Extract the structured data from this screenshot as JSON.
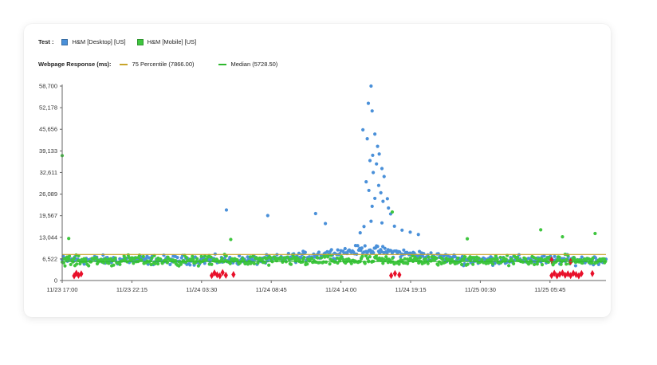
{
  "test_legend": {
    "label": "Test :",
    "items": [
      {
        "name": "H&M [Desktop] [US]",
        "color": "#4a90d9"
      },
      {
        "name": "H&M [Mobile] [US]",
        "color": "#3fc63f"
      }
    ]
  },
  "response_legend": {
    "label": "Webpage Response (ms):",
    "items": [
      {
        "name": "75 Percentile (7866.00)",
        "color": "#c8a42a"
      },
      {
        "name": "Median (5728.50)",
        "color": "#2eb82e"
      }
    ]
  },
  "chart_data": {
    "type": "scatter",
    "y_ticks": [
      "0",
      "6,522",
      "13,044",
      "19,567",
      "26,089",
      "32,611",
      "39,133",
      "45,656",
      "52,178",
      "58,700"
    ],
    "x_ticks": [
      "11/23 17:00",
      "11/23 22:15",
      "11/24 03:30",
      "11/24 08:45",
      "11/24 14:00",
      "11/24 19:15",
      "11/25 00:30",
      "11/25 05:45"
    ],
    "ylim": [
      0,
      58700
    ],
    "xlim": [
      0,
      1.0
    ],
    "percentile_75": 7866,
    "median": 5728.5,
    "colors": {
      "desktop": "#4a90d9",
      "mobile": "#3fc63f",
      "error": "#e8102a",
      "p75": "#c8a42a",
      "median": "#2eb82e"
    },
    "series": [
      {
        "name": "H&M [Desktop] [US]",
        "baseline": 6200,
        "spread": 2000
      },
      {
        "name": "H&M [Mobile] [US]",
        "baseline": 6000,
        "spread": 2200
      }
    ],
    "outliers_desktop": [
      [
        0.302,
        21300
      ],
      [
        0.378,
        19600
      ],
      [
        0.466,
        20200
      ],
      [
        0.484,
        17200
      ],
      [
        0.568,
        58700
      ],
      [
        0.563,
        53500
      ],
      [
        0.57,
        51200
      ],
      [
        0.553,
        45500
      ],
      [
        0.561,
        42800
      ],
      [
        0.575,
        44200
      ],
      [
        0.58,
        40500
      ],
      [
        0.571,
        37800
      ],
      [
        0.583,
        38200
      ],
      [
        0.566,
        36200
      ],
      [
        0.578,
        35200
      ],
      [
        0.588,
        33800
      ],
      [
        0.572,
        32600
      ],
      [
        0.559,
        29800
      ],
      [
        0.592,
        31400
      ],
      [
        0.582,
        28700
      ],
      [
        0.564,
        27200
      ],
      [
        0.586,
        26500
      ],
      [
        0.598,
        24700
      ],
      [
        0.575,
        24800
      ],
      [
        0.59,
        23900
      ],
      [
        0.57,
        22400
      ],
      [
        0.6,
        21900
      ],
      [
        0.568,
        17900
      ],
      [
        0.588,
        17400
      ],
      [
        0.555,
        16300
      ],
      [
        0.611,
        16400
      ],
      [
        0.604,
        20100
      ],
      [
        0.548,
        14400
      ],
      [
        0.625,
        15200
      ],
      [
        0.64,
        14600
      ],
      [
        0.655,
        13900
      ]
    ],
    "outliers_mobile": [
      [
        0.0,
        37700
      ],
      [
        0.607,
        20700
      ],
      [
        0.012,
        12700
      ],
      [
        0.31,
        12400
      ],
      [
        0.88,
        15300
      ],
      [
        0.745,
        12600
      ],
      [
        0.98,
        14200
      ],
      [
        0.92,
        13200
      ]
    ],
    "errors": [
      [
        0.022,
        1400
      ],
      [
        0.026,
        2200
      ],
      [
        0.03,
        1600
      ],
      [
        0.035,
        2000
      ],
      [
        0.275,
        1500
      ],
      [
        0.28,
        2300
      ],
      [
        0.285,
        1700
      ],
      [
        0.29,
        1400
      ],
      [
        0.295,
        2400
      ],
      [
        0.301,
        1600
      ],
      [
        0.315,
        1800
      ],
      [
        0.605,
        1500
      ],
      [
        0.612,
        2100
      ],
      [
        0.62,
        1700
      ],
      [
        0.9,
        1500
      ],
      [
        0.905,
        2200
      ],
      [
        0.91,
        1400
      ],
      [
        0.915,
        1900
      ],
      [
        0.92,
        2300
      ],
      [
        0.925,
        1600
      ],
      [
        0.93,
        2000
      ],
      [
        0.935,
        1500
      ],
      [
        0.94,
        2200
      ],
      [
        0.945,
        1800
      ],
      [
        0.95,
        1400
      ],
      [
        0.955,
        2100
      ],
      [
        0.935,
        5700
      ],
      [
        0.9,
        6200
      ],
      [
        0.975,
        2100
      ]
    ]
  }
}
